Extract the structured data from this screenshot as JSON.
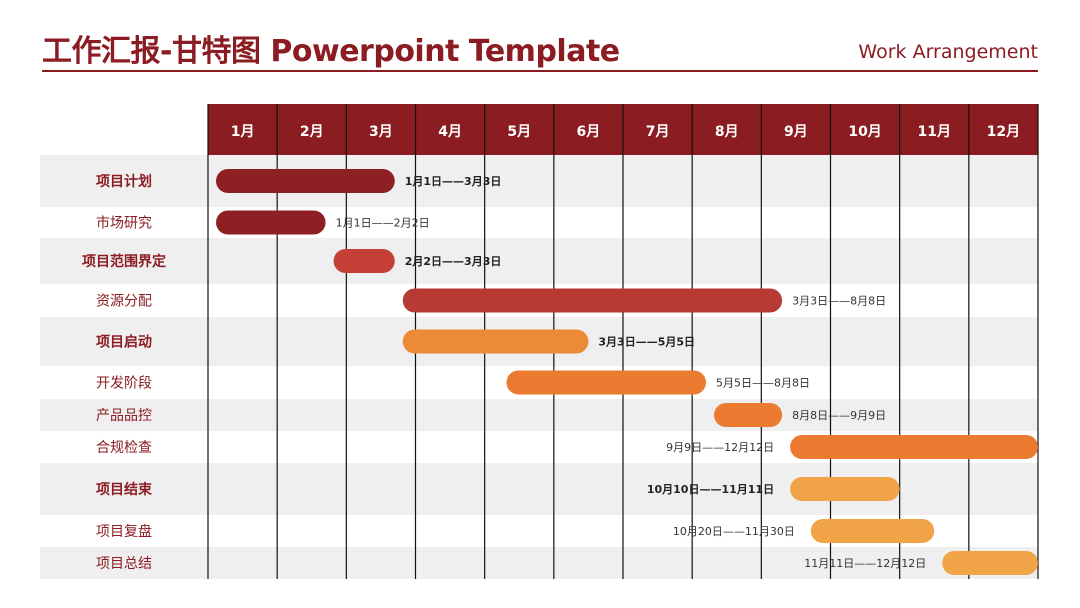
{
  "header": {
    "title": "工作汇报-甘特图 Powerpoint Template",
    "subtitle": "Work Arrangement"
  },
  "colors": {
    "header_bg": "#8b1c22",
    "title": "#8b1c22",
    "row_shaded": "#efefef",
    "dark_red": "#8e1f22",
    "red": "#c43f35",
    "orange": "#ec7b32",
    "light_orange": "#f0a447"
  },
  "chart_data": {
    "type": "gantt",
    "title": "工作汇报-甘特图 Powerpoint Template",
    "x_axis": {
      "unit": "month",
      "range": [
        1,
        13
      ]
    },
    "months": [
      "1月",
      "2月",
      "3月",
      "4月",
      "5月",
      "6月",
      "7月",
      "8月",
      "9月",
      "10月",
      "11月",
      "12月"
    ],
    "tasks": [
      {
        "name": "项目计划",
        "bold": true,
        "start": 1.0,
        "end": 3.7,
        "label": "1月1日——3月3日",
        "label_pos": "right",
        "color": "#8e1f22"
      },
      {
        "name": "市场研究",
        "bold": false,
        "start": 1.0,
        "end": 2.7,
        "label": "1月1日——2月2日",
        "label_pos": "right",
        "color": "#8e1f22"
      },
      {
        "name": "项目范围界定",
        "bold": true,
        "start": 2.7,
        "end": 3.7,
        "label": "2月2日——3月3日",
        "label_pos": "right",
        "color": "#c43f35"
      },
      {
        "name": "资源分配",
        "bold": false,
        "start": 3.7,
        "end": 9.3,
        "label": "3月3日——8月8日",
        "label_pos": "right",
        "color": "#b83a35"
      },
      {
        "name": "项目启动",
        "bold": true,
        "start": 3.7,
        "end": 6.5,
        "label": "3月3日——5月5日",
        "label_pos": "right",
        "color": "#ec8a35"
      },
      {
        "name": "开发阶段",
        "bold": false,
        "start": 5.2,
        "end": 8.2,
        "label": "5月5日——8月8日",
        "label_pos": "right",
        "color": "#ec7b32"
      },
      {
        "name": "产品品控",
        "bold": false,
        "start": 8.2,
        "end": 9.3,
        "label": "8月8日——9月9日",
        "label_pos": "right",
        "color": "#ec7b32"
      },
      {
        "name": "合规检查",
        "bold": false,
        "start": 9.3,
        "end": 13.0,
        "label": "9月9日——12月12日",
        "label_pos": "left",
        "color": "#ec7b32"
      },
      {
        "name": "项目结束",
        "bold": true,
        "start": 9.3,
        "end": 11.0,
        "label": "10月10日——11月11日",
        "label_pos": "left",
        "color": "#f0a447"
      },
      {
        "name": "项目复盘",
        "bold": false,
        "start": 9.6,
        "end": 11.5,
        "label": "10月20日——11月30日",
        "label_pos": "left",
        "color": "#f0a447"
      },
      {
        "name": "项目总结",
        "bold": false,
        "start": 11.5,
        "end": 13.0,
        "label": "11月11日——12月12日",
        "label_pos": "left",
        "color": "#f0a447"
      }
    ]
  }
}
